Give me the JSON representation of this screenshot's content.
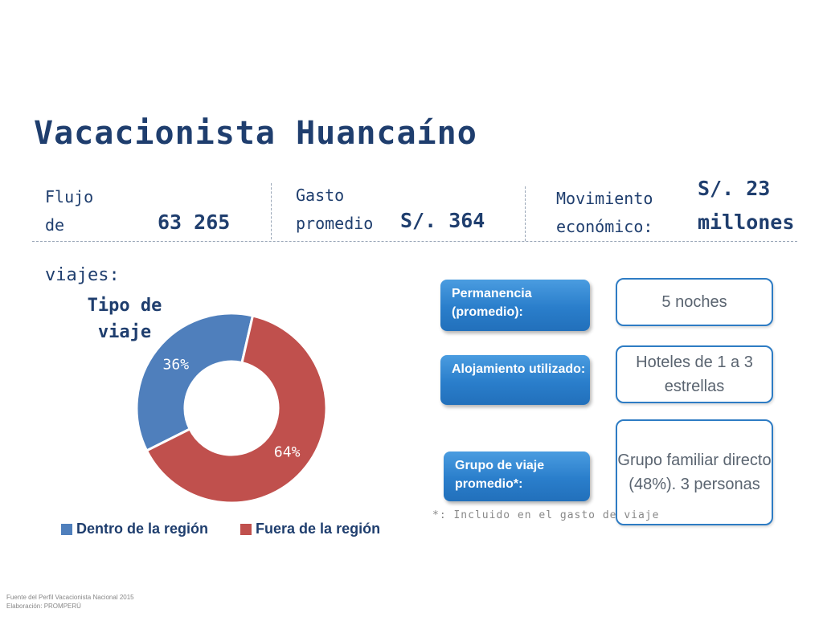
{
  "title": "Vacacionista Huancaíno",
  "stats": {
    "flujo_label": "Flujo\nde",
    "flujo_value": "63 265",
    "viajes_label": "viajes:",
    "gasto_label": "Gasto\npromedio",
    "gasto_value": "S/. 364",
    "movimiento_label": "Movimiento\neconómico:",
    "movimiento_value_line1": "S/. 23",
    "movimiento_value_line2": "millones"
  },
  "chart_data": {
    "type": "pie",
    "title": "Tipo de viaje",
    "slices": [
      {
        "label": "Dentro de la región",
        "value": 36,
        "display": "36%",
        "color": "#4f7fbc"
      },
      {
        "label": "Fuera de la región",
        "value": 64,
        "display": "64%",
        "color": "#c0504d"
      }
    ],
    "donut": true,
    "legend_position": "bottom"
  },
  "details": [
    {
      "label": "Permanencia (promedio):",
      "value": "5 noches"
    },
    {
      "label": "Alojamiento utilizado:",
      "value": "Hoteles de 1 a 3 estrellas"
    },
    {
      "label": "Grupo de viaje promedio*:",
      "value": "Grupo familiar directo (48%). 3 personas"
    }
  ],
  "note": "*: Incluido en el gasto de viaje",
  "source": {
    "line1": "Fuente del Perfil Vacacionista Nacional 2015",
    "line2": "Elaboración: PROMPERÚ"
  }
}
